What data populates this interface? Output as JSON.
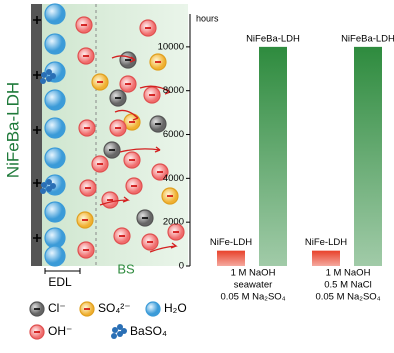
{
  "diagram": {
    "electrode_label": "NiFeBa-LDH",
    "edl_label": "EDL",
    "bs_label": "BS",
    "legend": {
      "cl": "Cl⁻",
      "so4": "SO₄²⁻",
      "h2o": "H₂O",
      "oh": "OH⁻",
      "baso4": "BaSO₄"
    }
  },
  "chart_data": {
    "type": "bar",
    "y_label": "hours",
    "categories": [
      [
        "1 M NaOH",
        "seawater",
        "0.05 M Na₂SO₄"
      ],
      [
        "1 M NaOH",
        "0.5 M NaCl",
        "0.05 M Na₂SO₄"
      ]
    ],
    "series": [
      {
        "name": "NiFe-LDH",
        "color": "#e8412a",
        "values": [
          700,
          700
        ]
      },
      {
        "name": "NiFeBa-LDH",
        "color": "#2e8b3e",
        "values": [
          10000,
          10000
        ]
      }
    ],
    "ylim": [
      0,
      11500
    ],
    "yticks": [
      0,
      2000,
      4000,
      6000,
      8000,
      10000
    ]
  }
}
